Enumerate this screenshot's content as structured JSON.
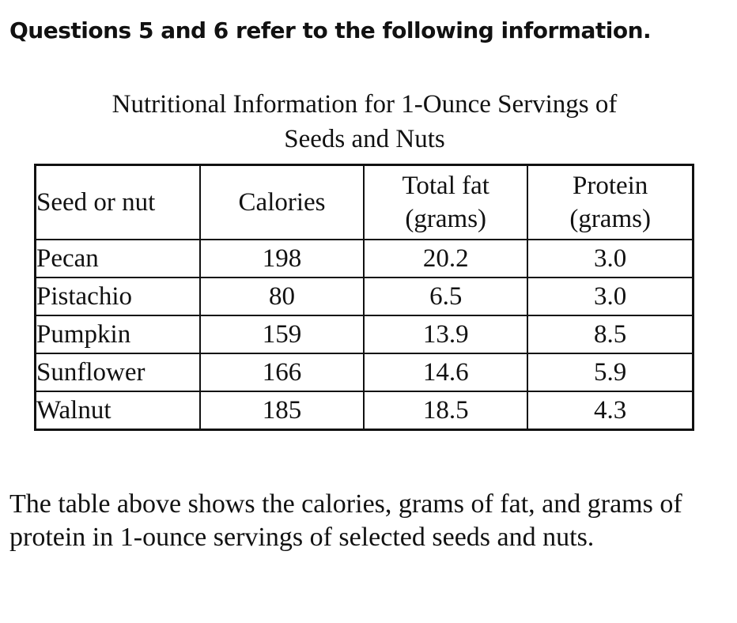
{
  "heading": "Questions 5 and 6 refer to the following information.",
  "table": {
    "title_line1": "Nutritional Information for 1-Ounce Servings of",
    "title_line2": "Seeds and Nuts",
    "headers": {
      "col1": "Seed or nut",
      "col2": "Calories",
      "col3_line1": "Total fat",
      "col3_line2": "(grams)",
      "col4_line1": "Protein",
      "col4_line2": "(grams)"
    },
    "rows": [
      {
        "name": "Pecan",
        "calories": "198",
        "fat": "20.2",
        "protein": "3.0"
      },
      {
        "name": "Pistachio",
        "calories": "80",
        "fat": "6.5",
        "protein": "3.0"
      },
      {
        "name": "Pumpkin",
        "calories": "159",
        "fat": "13.9",
        "protein": "8.5"
      },
      {
        "name": "Sunflower",
        "calories": "166",
        "fat": "14.6",
        "protein": "5.9"
      },
      {
        "name": "Walnut",
        "calories": "185",
        "fat": "18.5",
        "protein": "4.3"
      }
    ]
  },
  "paragraph": "The table above shows the calories, grams of fat, and grams of protein in 1-ounce servings of selected seeds and nuts."
}
